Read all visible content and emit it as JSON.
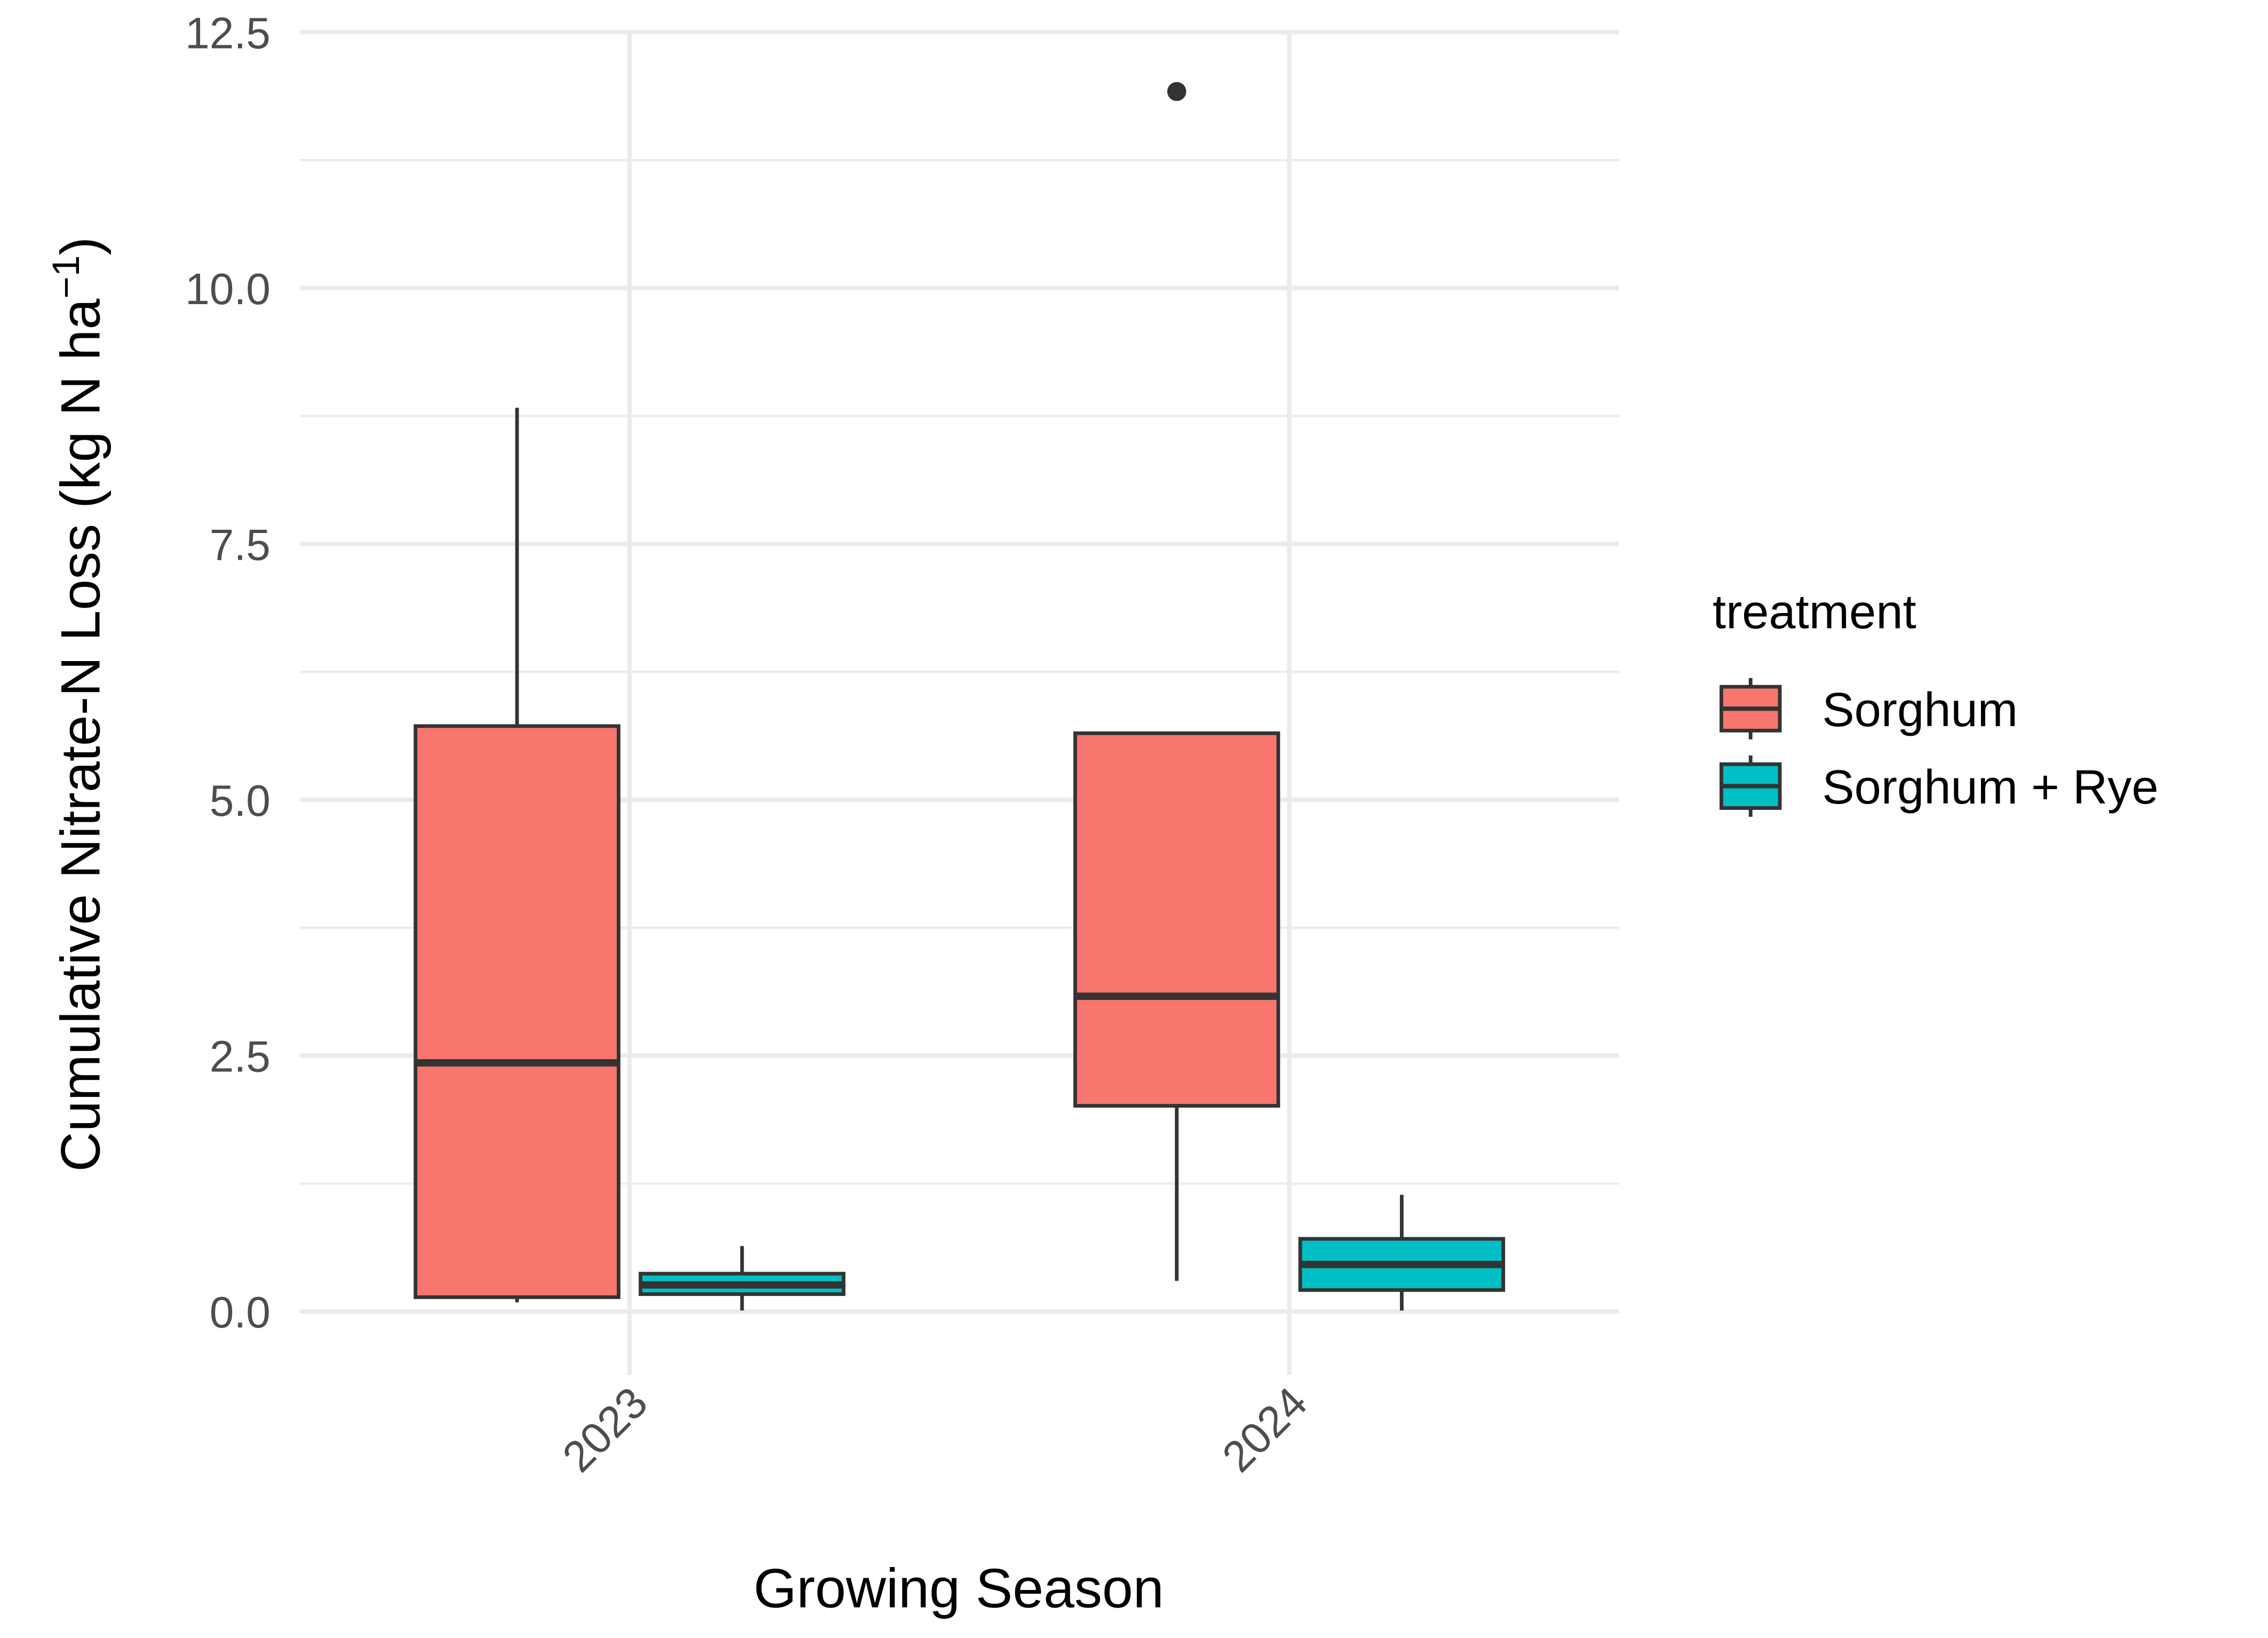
{
  "chart_data": {
    "type": "box",
    "x_label": "Growing Season",
    "y_label": {
      "text": "Cumulative Nitrate-N Loss (kg N ha",
      "superscript": "−1",
      "suffix": ")"
    },
    "categories": [
      "2023",
      "2024"
    ],
    "legend_title": "treatment",
    "legend_position": "right",
    "grid": true,
    "ylim": [
      -0.62,
      12.5
    ],
    "yticks": [
      {
        "value": 0,
        "label": "0.0"
      },
      2.5,
      {
        "value": 5,
        "label": "5.0"
      },
      7.5,
      {
        "value": 10,
        "label": "10.0"
      },
      12.5
    ],
    "series": [
      {
        "name": "Sorghum",
        "color": "#F8766D",
        "values": [
          {
            "min": 0.09,
            "q1": 0.14,
            "median": 2.43,
            "q3": 5.72,
            "max": 8.83,
            "outliers": []
          },
          {
            "min": 0.3,
            "q1": 2.01,
            "median": 3.08,
            "q3": 5.65,
            "max": 5.65,
            "outliers": [
              11.92
            ]
          }
        ]
      },
      {
        "name": "Sorghum + Rye",
        "color": "#00BFC4",
        "values": [
          {
            "min": 0.01,
            "q1": 0.17,
            "median": 0.26,
            "q3": 0.37,
            "max": 0.64,
            "outliers": []
          },
          {
            "min": 0.01,
            "q1": 0.21,
            "median": 0.46,
            "q3": 0.71,
            "max": 1.14,
            "outliers": []
          }
        ]
      }
    ]
  }
}
